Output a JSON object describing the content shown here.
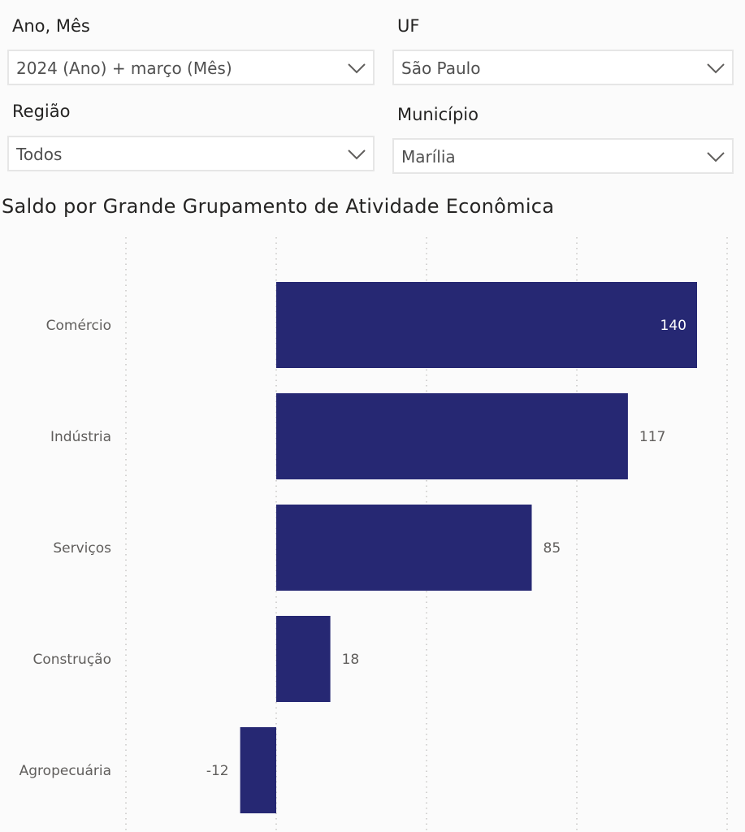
{
  "filters": {
    "ano_mes": {
      "label": "Ano, Mês",
      "value": "2024 (Ano) + março (Mês)"
    },
    "uf": {
      "label": "UF",
      "value": "São Paulo"
    },
    "regiao": {
      "label": "Região",
      "value": "Todos"
    },
    "municipio": {
      "label": "Município",
      "value": "Marília"
    }
  },
  "icons": {
    "dropdown": "chevron-down-icon"
  },
  "colors": {
    "bar": "#262873",
    "label_inside": "#ffffff",
    "label_outside": "#605e5c",
    "grid": "#c8c6c4"
  },
  "chart_data": {
    "type": "bar",
    "orientation": "horizontal",
    "title": "Saldo por Grande Grupamento de Atividade Econômica",
    "categories": [
      "Comércio",
      "Indústria",
      "Serviços",
      "Construção",
      "Agropecuária"
    ],
    "values": [
      140,
      117,
      85,
      18,
      -12
    ],
    "data_labels": [
      "140",
      "117",
      "85",
      "18",
      "-12"
    ],
    "xlim": [
      -50,
      150
    ],
    "grid": true,
    "gridlines": [
      -50,
      0,
      50,
      100,
      150
    ],
    "legend": "none"
  }
}
